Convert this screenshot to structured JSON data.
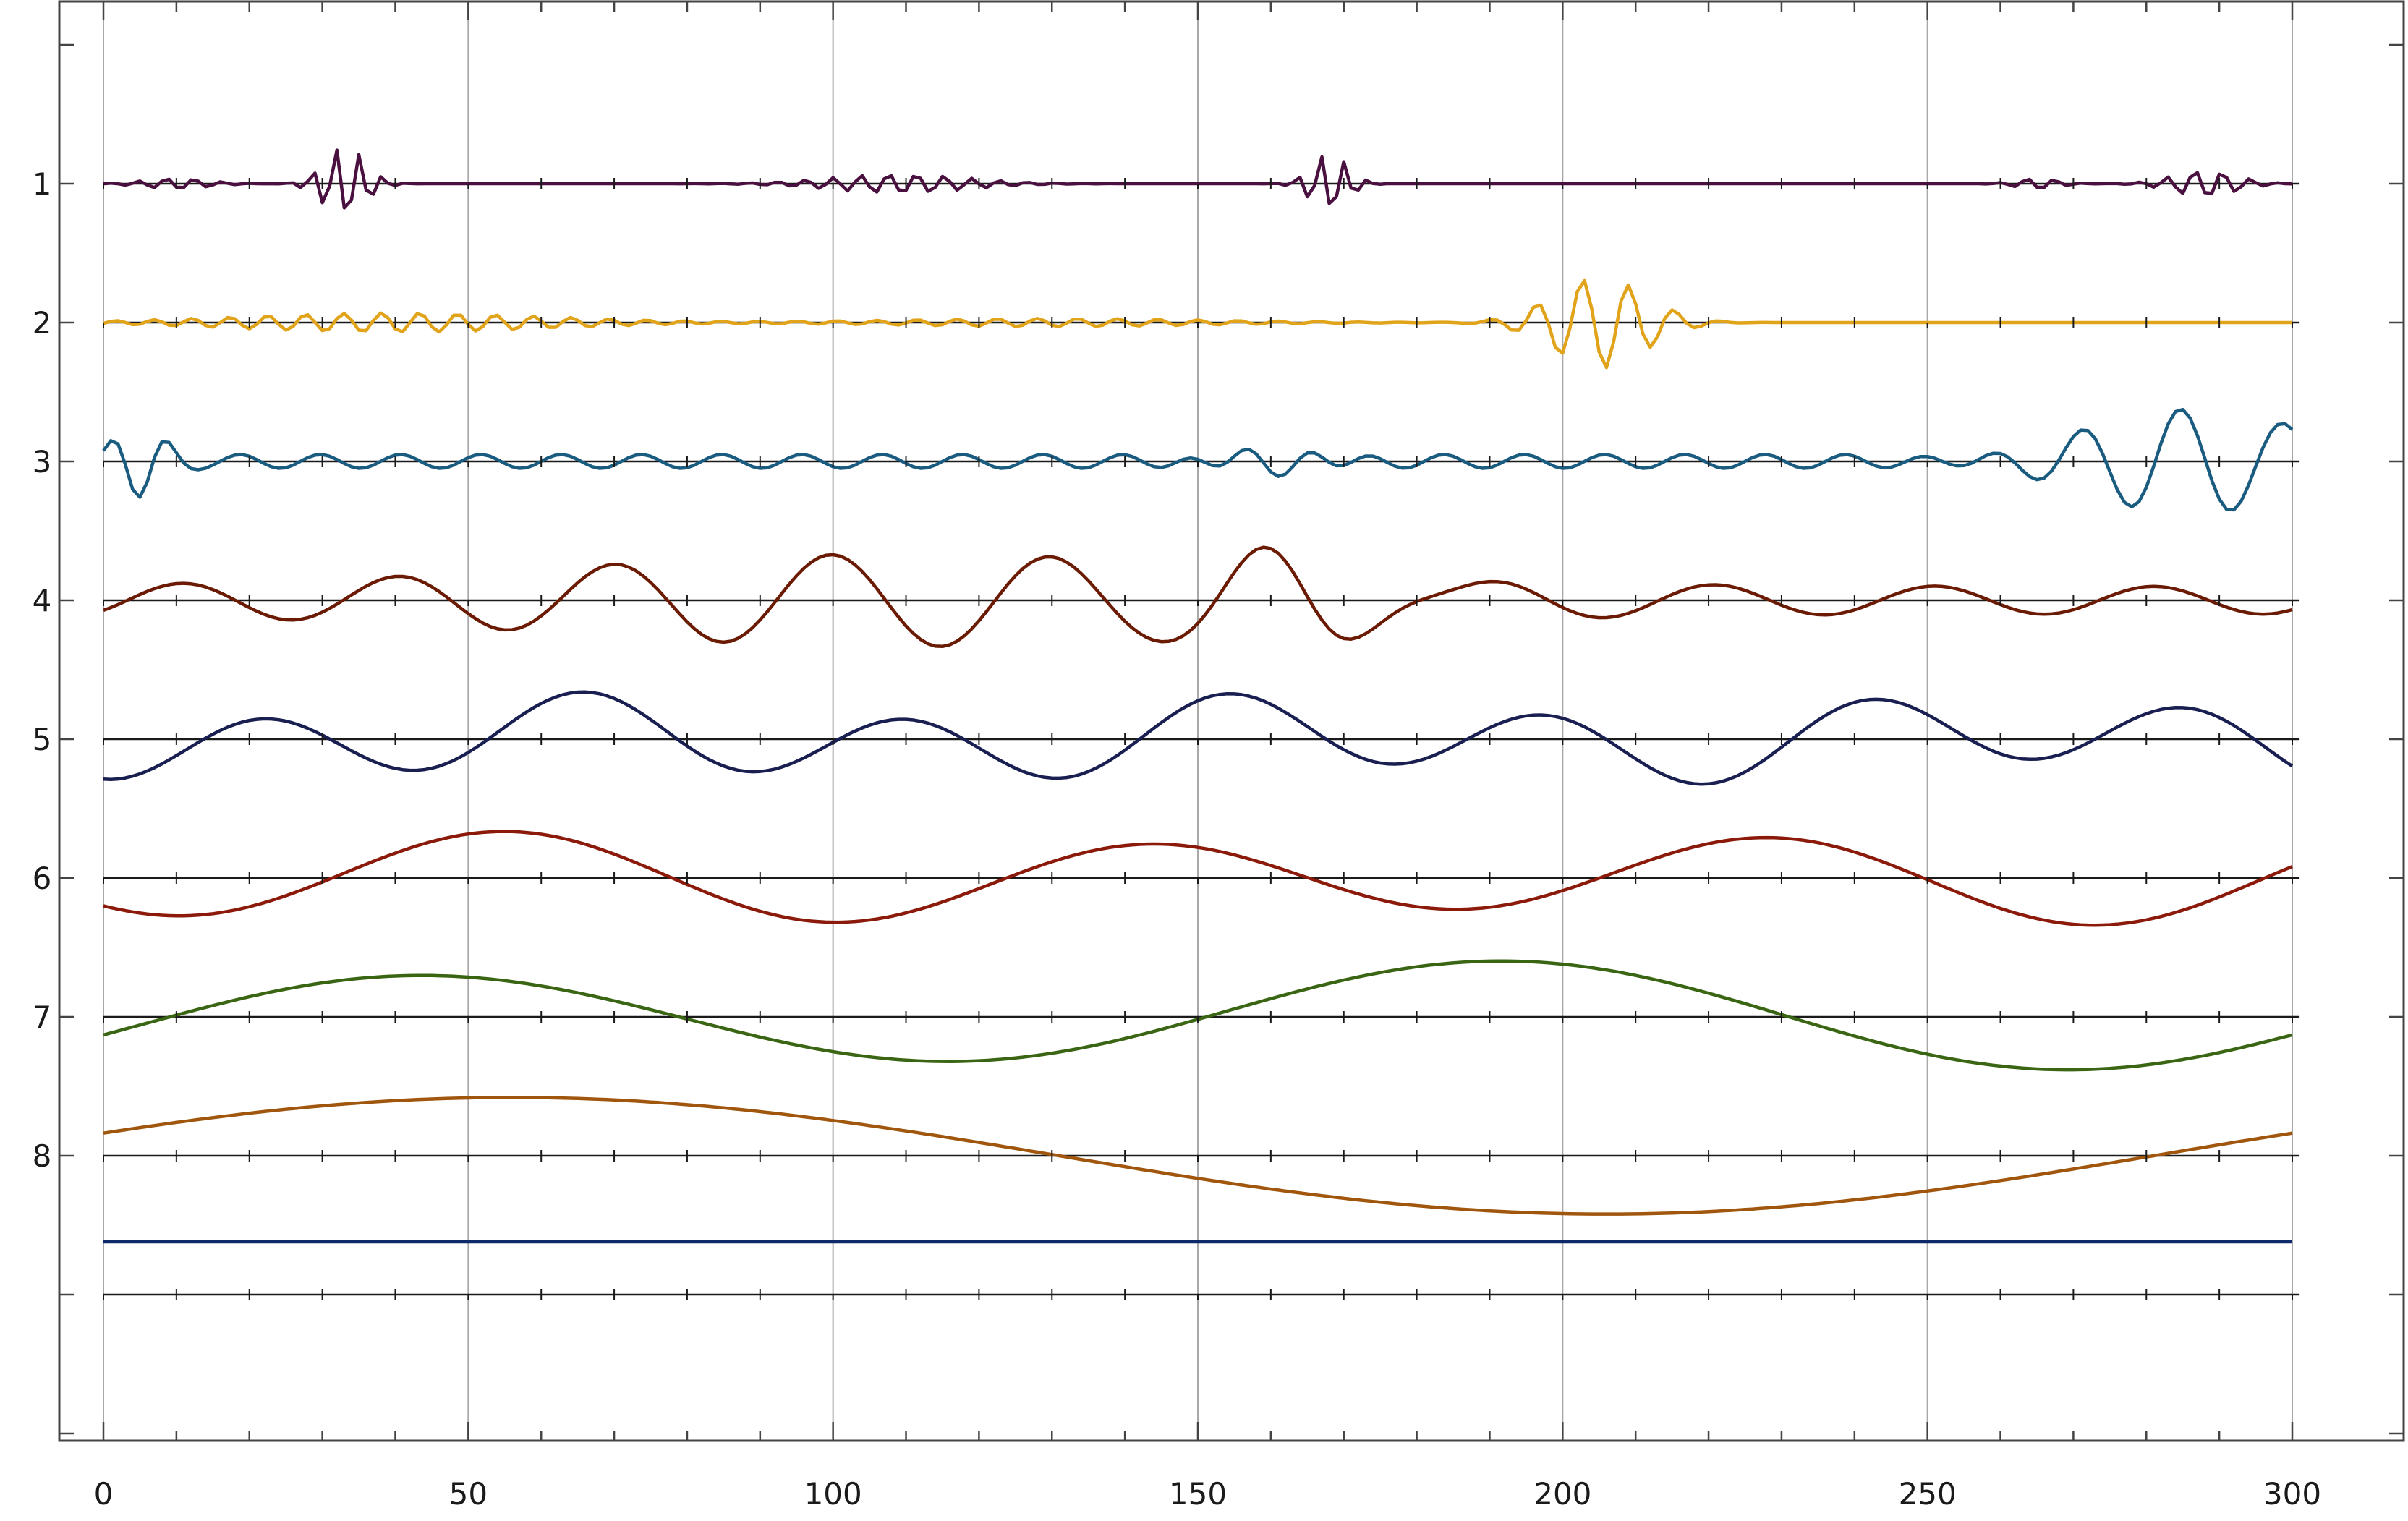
{
  "chart_data": {
    "type": "line",
    "title": "",
    "xlabel": "",
    "ylabel": "",
    "xlim": [
      0,
      301
    ],
    "ylim": [
      10,
      0
    ],
    "grid": true,
    "x_ticks": [
      0,
      50,
      100,
      150,
      200,
      250,
      300
    ],
    "x_tick_labels": [
      "0",
      "50",
      "100",
      "150",
      "200",
      "250",
      "300"
    ],
    "y_ticks": [
      1,
      2,
      3,
      4,
      5,
      6,
      7,
      8
    ],
    "y_tick_labels": [
      "1",
      "2",
      "3",
      "4",
      "5",
      "6",
      "7",
      "8"
    ],
    "series": [
      {
        "baseline": 1,
        "color": "#4a1040",
        "samples": 301,
        "components": [],
        "bursts": [
          {
            "center": 33,
            "width": 4,
            "amp": 0.27,
            "period": 3.2
          },
          {
            "center": 109,
            "width": 13,
            "amp": 0.07,
            "period": 3.8
          },
          {
            "center": 168,
            "width": 3.5,
            "amp": 0.22,
            "period": 3.2
          },
          {
            "center": 288,
            "width": 6,
            "amp": 0.1,
            "period": 3.8
          },
          {
            "center": 10,
            "width": 6,
            "amp": 0.04,
            "period": 3.8
          },
          {
            "center": 265,
            "width": 4,
            "amp": 0.04,
            "period": 3.8
          }
        ]
      },
      {
        "baseline": 2,
        "color": "#e0a31a",
        "samples": 301,
        "components": [],
        "bursts": [
          {
            "center": 40,
            "width": 30,
            "amp": 0.07,
            "period": 5.2
          },
          {
            "center": 205,
            "width": 9,
            "amp": 0.33,
            "period": 6.3
          },
          {
            "center": 130,
            "width": 30,
            "amp": 0.03,
            "period": 5.5
          }
        ]
      },
      {
        "baseline": 3,
        "color": "#1a5b80",
        "samples": 301,
        "components": [
          {
            "amp": 0.05,
            "period": 11,
            "phase": 0.3
          }
        ],
        "bursts": [
          {
            "center": 4,
            "width": 5,
            "amp": 0.27,
            "period": 8
          },
          {
            "center": 160,
            "width": 9,
            "amp": 0.16,
            "period": 10
          },
          {
            "center": 290,
            "width": 22,
            "amp": 0.38,
            "period": 14
          }
        ]
      },
      {
        "baseline": 4,
        "color": "#6b1a04",
        "samples": 301,
        "components": [
          {
            "amp": 0.1,
            "period": 30,
            "phase": 2.4
          }
        ],
        "bursts": [
          {
            "center": 110,
            "width": 65,
            "amp": 0.24,
            "period": 30
          },
          {
            "center": 166,
            "width": 15,
            "amp": 0.2,
            "period": 22
          }
        ]
      },
      {
        "baseline": 5,
        "color": "#1a1f52",
        "samples": 301,
        "components": [
          {
            "amp": 0.24,
            "period": 44,
            "phase": 1.6
          },
          {
            "amp": 0.1,
            "period": 97,
            "phase": 0.5
          }
        ],
        "bursts": []
      },
      {
        "baseline": 6,
        "color": "#8b1a0a",
        "samples": 301,
        "components": [
          {
            "amp": 0.28,
            "period": 87,
            "phase": 0.7
          },
          {
            "amp": 0.06,
            "period": 150,
            "phase": 2.8
          }
        ],
        "bursts": []
      },
      {
        "baseline": 7,
        "color": "#3a6614",
        "samples": 301,
        "components": [
          {
            "amp": 0.35,
            "period": 150,
            "phase": 2.93
          },
          {
            "amp": 0.06,
            "period": 300,
            "phase": 1.2
          }
        ],
        "bursts": []
      },
      {
        "baseline": 8,
        "color": "#a0560c",
        "samples": 301,
        "components": [
          {
            "amp": 0.42,
            "period": 300,
            "phase": 3.54
          }
        ],
        "bursts": []
      },
      {
        "baseline": 8.62,
        "color": "#0f2a6b",
        "samples": 301,
        "components": [],
        "bursts": []
      }
    ]
  }
}
